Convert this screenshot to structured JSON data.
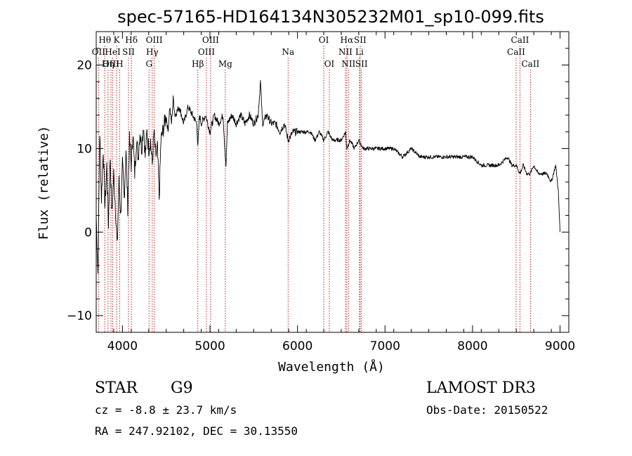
{
  "chart_data": {
    "type": "line",
    "title": "spec-57165-HD164134N305232M01_sp10-099.fits",
    "xlabel": "Wavelength (Å)",
    "ylabel": "Flux (relative)",
    "xlim": [
      3700,
      9100
    ],
    "ylim": [
      -12,
      24
    ],
    "xticks": [
      4000,
      5000,
      6000,
      7000,
      8000,
      9000
    ],
    "yticks": [
      -10,
      0,
      10,
      20
    ],
    "series": [
      {
        "name": "flux",
        "x": [
          3700,
          3720,
          3740,
          3760,
          3780,
          3800,
          3820,
          3840,
          3860,
          3880,
          3900,
          3920,
          3940,
          3960,
          3980,
          4000,
          4020,
          4040,
          4060,
          4080,
          4100,
          4120,
          4140,
          4160,
          4180,
          4200,
          4220,
          4240,
          4260,
          4280,
          4300,
          4320,
          4340,
          4360,
          4380,
          4400,
          4420,
          4440,
          4460,
          4480,
          4500,
          4520,
          4540,
          4560,
          4580,
          4600,
          4650,
          4700,
          4750,
          4800,
          4850,
          4861,
          4880,
          4900,
          4950,
          5000,
          5050,
          5100,
          5150,
          5170,
          5183,
          5200,
          5250,
          5300,
          5350,
          5400,
          5450,
          5500,
          5550,
          5577,
          5600,
          5650,
          5700,
          5750,
          5800,
          5850,
          5893,
          5950,
          6000,
          6050,
          6100,
          6150,
          6200,
          6250,
          6300,
          6350,
          6400,
          6450,
          6500,
          6550,
          6563,
          6600,
          6650,
          6700,
          6750,
          6800,
          6850,
          6900,
          6950,
          7000,
          7100,
          7200,
          7300,
          7400,
          7500,
          7600,
          7700,
          7800,
          7900,
          8000,
          8100,
          8200,
          8300,
          8400,
          8450,
          8500,
          8542,
          8580,
          8620,
          8662,
          8700,
          8750,
          8800,
          8850,
          8900,
          8950,
          8980,
          9000
        ],
        "y": [
          2,
          -5,
          12,
          4,
          10,
          3,
          8,
          1,
          9,
          2,
          7,
          3,
          -2,
          6,
          2,
          8,
          4,
          10,
          3,
          11,
          8,
          12,
          7,
          11,
          9,
          12,
          10,
          13,
          9,
          12,
          10,
          11,
          8,
          12,
          9,
          10,
          4,
          11,
          12,
          13,
          14,
          12,
          15,
          13,
          16,
          14,
          15,
          13,
          15,
          14,
          13,
          10,
          14,
          13,
          14,
          12,
          14,
          13,
          14,
          10,
          8,
          13,
          14,
          13,
          14,
          13,
          14,
          13,
          14,
          18,
          13,
          14,
          13,
          13,
          12,
          13,
          11,
          12,
          12,
          12,
          12,
          12,
          11,
          12,
          11,
          12,
          11,
          11,
          11,
          12,
          10,
          11,
          10,
          11,
          10,
          10,
          10,
          10,
          10,
          10,
          10,
          9,
          10,
          9,
          9,
          9,
          9,
          9,
          9,
          9,
          8,
          8,
          8,
          9,
          8,
          8,
          7,
          8,
          7,
          7,
          8,
          7,
          7,
          7,
          6,
          8,
          5,
          0
        ]
      }
    ],
    "spectral_lines": [
      {
        "label": "Hθ",
        "wavelength": 3798,
        "row": 1
      },
      {
        "label": "OII",
        "wavelength": 3727,
        "row": 2
      },
      {
        "label": "OIII",
        "wavelength": 3869,
        "row": 3
      },
      {
        "label": "K",
        "wavelength": 3934,
        "row": 1
      },
      {
        "label": "HeI",
        "wavelength": 3889,
        "row": 2
      },
      {
        "label": "Hη",
        "wavelength": 3835,
        "row": 3
      },
      {
        "label": "Hδ",
        "wavelength": 4102,
        "row": 1
      },
      {
        "label": "SII",
        "wavelength": 4069,
        "row": 2
      },
      {
        "label": "H",
        "wavelength": 3968,
        "row": 3
      },
      {
        "label": "OIII",
        "wavelength": 4363,
        "row": 1
      },
      {
        "label": "Hγ",
        "wavelength": 4340,
        "row": 2
      },
      {
        "label": "G",
        "wavelength": 4304,
        "row": 3
      },
      {
        "label": "OIII",
        "wavelength": 5007,
        "row": 1
      },
      {
        "label": "OIII",
        "wavelength": 4959,
        "row": 2
      },
      {
        "label": "Hβ",
        "wavelength": 4861,
        "row": 3
      },
      {
        "label": "Mg",
        "wavelength": 5175,
        "row": 3
      },
      {
        "label": "Na",
        "wavelength": 5893,
        "row": 2
      },
      {
        "label": "OI",
        "wavelength": 6300,
        "row": 1
      },
      {
        "label": "OI",
        "wavelength": 6364,
        "row": 3
      },
      {
        "label": "Hα",
        "wavelength": 6563,
        "row": 1
      },
      {
        "label": "SII",
        "wavelength": 6716,
        "row": 1
      },
      {
        "label": "NII",
        "wavelength": 6548,
        "row": 2
      },
      {
        "label": "Li",
        "wavelength": 6708,
        "row": 2
      },
      {
        "label": "NII",
        "wavelength": 6583,
        "row": 3
      },
      {
        "label": "SII",
        "wavelength": 6731,
        "row": 3
      },
      {
        "label": "CaII",
        "wavelength": 8542,
        "row": 1
      },
      {
        "label": "CaII",
        "wavelength": 8498,
        "row": 2
      },
      {
        "label": "CaII",
        "wavelength": 8662,
        "row": 3
      }
    ]
  },
  "info": {
    "class": "STAR",
    "subclass": "G9",
    "survey": "LAMOST DR3",
    "cz": "cz = -8.8 ± 23.7 km/s",
    "obs_date": "Obs-Date: 20150522",
    "radec": "RA = 247.92102, DEC =  30.13550"
  },
  "colors": {
    "line_marker": "#b22222",
    "spectrum": "#000000"
  }
}
